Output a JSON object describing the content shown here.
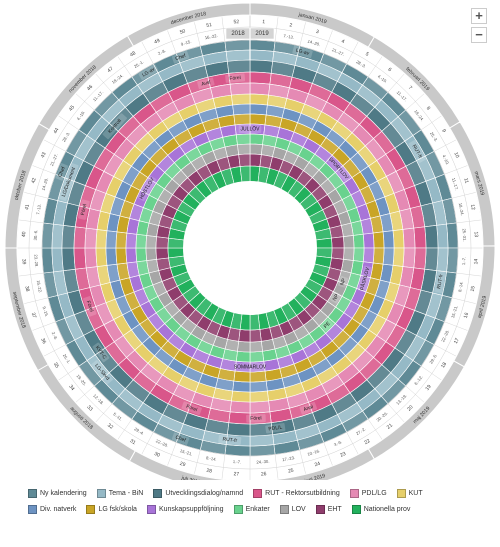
{
  "wheel": {
    "year_left": "2018",
    "year_right": "2019",
    "months": [
      {
        "label": "januari 2019",
        "start": 0.0,
        "end": 30.5
      },
      {
        "label": "februari 2019",
        "start": 30.5,
        "end": 59
      },
      {
        "label": "mars 2019",
        "start": 59,
        "end": 89.5
      },
      {
        "label": "april 2019",
        "start": 89.5,
        "end": 119
      },
      {
        "label": "maj 2019",
        "start": 119,
        "end": 149.5
      },
      {
        "label": "juni 2019",
        "start": 149.5,
        "end": 179
      },
      {
        "label": "juli 2018",
        "start": 179,
        "end": 209.5
      },
      {
        "label": "augusti 2018",
        "start": 209.5,
        "end": 240
      },
      {
        "label": "september 2018",
        "start": 240,
        "end": 270
      },
      {
        "label": "oktober 2018",
        "start": 270,
        "end": 300.5
      },
      {
        "label": "november 2018",
        "start": 300.5,
        "end": 330
      },
      {
        "label": "december 2018",
        "start": 330,
        "end": 360
      }
    ],
    "week_numbers": [
      "1",
      "2",
      "3",
      "4",
      "5",
      "6",
      "7",
      "8",
      "9",
      "10",
      "11",
      "12",
      "13",
      "14",
      "15",
      "16",
      "17",
      "18",
      "19",
      "20",
      "21",
      "22",
      "23",
      "24",
      "25",
      "26",
      "27",
      "28",
      "29",
      "30",
      "31",
      "32",
      "33",
      "34",
      "35",
      "36",
      "37",
      "38",
      "39",
      "40",
      "41",
      "42",
      "43",
      "44",
      "45",
      "46",
      "47",
      "48",
      "49",
      "50",
      "51",
      "52"
    ],
    "week_dates": [
      "31.-6.",
      "7.-13.",
      "14.-20.",
      "21.-27.",
      "28.-3.",
      "4.-10.",
      "11.-17.",
      "18.-24.",
      "25.-3.",
      "4.-10.",
      "11.-17.",
      "18.-24.",
      "25.-31.",
      "1.-7.",
      "8.-14.",
      "15.-21.",
      "22.-28.",
      "29.-5.",
      "6.-12.",
      "13.-19.",
      "20.-26.",
      "27.-2.",
      "3.-9.",
      "10.-16.",
      "17.-23.",
      "24.-30.",
      "1.-7.",
      "8.-14.",
      "15.-21.",
      "22.-28.",
      "29.-4.",
      "5.-11.",
      "12.-18.",
      "19.-25.",
      "26.-1.",
      "2.-8.",
      "9.-15.",
      "16.-22.",
      "23.-29.",
      "30.-6.",
      "7.-13.",
      "14.-20.",
      "21.-27.",
      "28.-3.",
      "4.-10.",
      "11.-17.",
      "18.-24.",
      "25.-1.",
      "2.-8.",
      "9.-15.",
      "16.-22.",
      "23.-30."
    ],
    "ring_labels": [
      {
        "text": "JULLÖV",
        "angle": 0,
        "ring": 9
      },
      {
        "text": "SOMMARLOV",
        "angle": 180,
        "ring": 9
      },
      {
        "text": "HÖSTLOV",
        "angle": 300,
        "ring": 9
      },
      {
        "text": "SPORTLOV",
        "angle": 48,
        "ring": 9
      },
      {
        "text": "PÅSKLOV",
        "angle": 105,
        "ring": 9
      },
      {
        "text": "Förel",
        "angle": 355,
        "ring": 4
      },
      {
        "text": "LG-av",
        "angle": 15,
        "ring": 1
      },
      {
        "text": "RUT-fr",
        "angle": 60,
        "ring": 2
      },
      {
        "text": "RUT-fr",
        "angle": 100,
        "ring": 2
      },
      {
        "text": "PDL/L",
        "angle": 172,
        "ring": 3
      },
      {
        "text": "Förel",
        "angle": 178,
        "ring": 4
      },
      {
        "text": "Anal",
        "angle": 160,
        "ring": 4
      },
      {
        "text": "RUT-fr",
        "angle": 186,
        "ring": 2
      },
      {
        "text": "Chef",
        "angle": 200,
        "ring": 1
      },
      {
        "text": "LG-Skvd",
        "angle": 230,
        "ring": 2
      },
      {
        "text": "Förel",
        "angle": 250,
        "ring": 4
      },
      {
        "text": "KVT-C",
        "angle": 235,
        "ring": 3
      },
      {
        "text": "Chef",
        "angle": 292,
        "ring": 1
      },
      {
        "text": "LG/Dokument",
        "angle": 290,
        "ring": 2
      },
      {
        "text": "Förel",
        "angle": 283,
        "ring": 4
      },
      {
        "text": "LG-av",
        "angle": 330,
        "ring": 1
      },
      {
        "text": "Chef",
        "angle": 340,
        "ring": 1
      },
      {
        "text": "Avsl",
        "angle": 345,
        "ring": 4
      },
      {
        "text": "Kontroll",
        "angle": 312,
        "ring": 3
      },
      {
        "text": "Förel",
        "angle": 200,
        "ring": 4
      },
      {
        "text": "NP",
        "angle": 110,
        "ring": 11
      },
      {
        "text": "NP",
        "angle": 120,
        "ring": 11
      },
      {
        "text": "PE",
        "angle": 135,
        "ring": 10
      }
    ]
  },
  "legend": [
    {
      "label": "Ny kalendering",
      "color": "#5f8a96"
    },
    {
      "label": "Tema - BiN",
      "color": "#95b9c6"
    },
    {
      "label": "Utvecklingsdialog/namnd",
      "color": "#4f7a86"
    },
    {
      "label": "RUT - Rektorsutbildning",
      "color": "#d9568a"
    },
    {
      "label": "PDL/LG",
      "color": "#e58ab4"
    },
    {
      "label": "KUT",
      "color": "#e6cf6a"
    },
    {
      "label": "Div. natverk",
      "color": "#6d93c2"
    },
    {
      "label": "LG fsk/skola",
      "color": "#c9a526"
    },
    {
      "label": "Kunskapsuppföljning",
      "color": "#a874d8"
    },
    {
      "label": "Enkater",
      "color": "#69d28e"
    },
    {
      "label": "LOV",
      "color": "#a6a6a6"
    },
    {
      "label": "EHT",
      "color": "#8f3d6c"
    },
    {
      "label": "Nationella prov",
      "color": "#22b15d"
    }
  ],
  "controls": {
    "zoom_in": "+",
    "zoom_out": "−"
  }
}
